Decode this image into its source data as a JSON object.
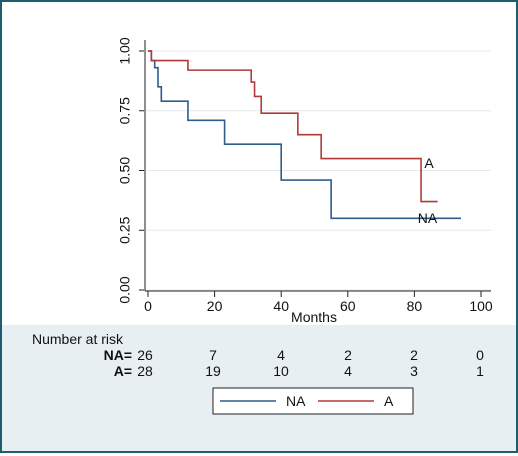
{
  "chart_data": {
    "type": "line",
    "step": true,
    "xlabel": "Months",
    "ylabel": "",
    "xlim": [
      0,
      100
    ],
    "ylim": [
      0,
      1
    ],
    "xticks": [
      "0",
      "20",
      "40",
      "60",
      "80",
      "100"
    ],
    "yticks": [
      "0.00",
      "0.25",
      "0.50",
      "0.75",
      "1.00"
    ],
    "grid": true,
    "legend_position": "bottom",
    "series": [
      {
        "name": "NA",
        "color": "#2e5d8c",
        "x": [
          0,
          1,
          2,
          3,
          4,
          12,
          23,
          40,
          55,
          94
        ],
        "y": [
          1.0,
          0.96,
          0.93,
          0.85,
          0.79,
          0.71,
          0.61,
          0.46,
          0.3,
          0.3
        ]
      },
      {
        "name": "A",
        "color": "#b03a3a",
        "x": [
          0,
          1,
          2,
          12,
          31,
          32,
          34,
          38,
          45,
          52,
          82,
          87
        ],
        "y": [
          1.0,
          0.96,
          0.96,
          0.92,
          0.87,
          0.81,
          0.74,
          0.74,
          0.65,
          0.55,
          0.37,
          0.37
        ]
      }
    ],
    "curve_labels": [
      {
        "text": "A",
        "x": 83,
        "y": 0.51
      },
      {
        "text": "NA",
        "x": 81,
        "y": 0.28
      }
    ],
    "risk_table": {
      "title": "Number at risk",
      "rows": [
        {
          "label": "NA=",
          "values": [
            "26",
            "7",
            "4",
            "2",
            "2",
            "0"
          ]
        },
        {
          "label": "A=",
          "values": [
            "28",
            "19",
            "10",
            "4",
            "3",
            "1"
          ]
        }
      ]
    },
    "legend": [
      {
        "label": "NA",
        "color": "#2e5d8c"
      },
      {
        "label": "A",
        "color": "#b03a3a"
      }
    ]
  }
}
